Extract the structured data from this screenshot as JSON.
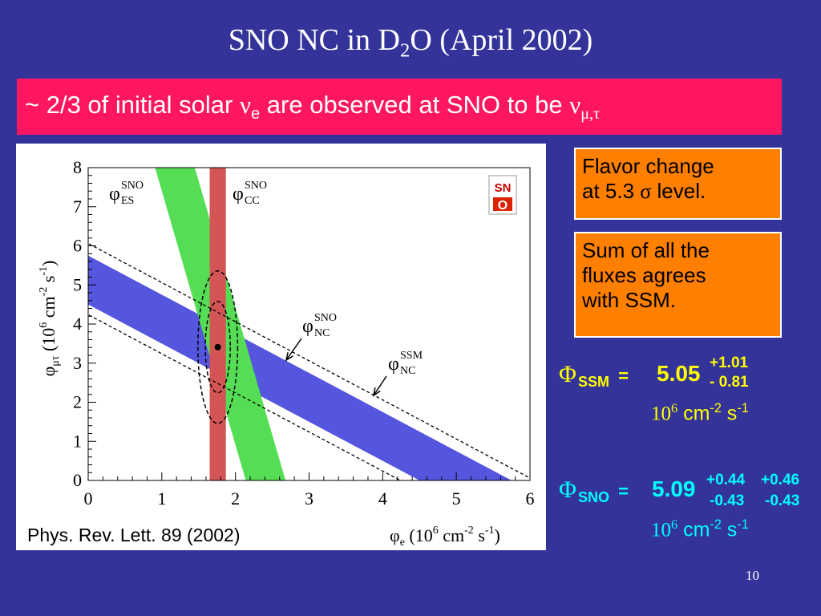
{
  "slide": {
    "title_prefix": "SNO NC in D",
    "title_sub": "2",
    "title_suffix": "O (April 2002)",
    "banner_prefix": "~ 2/3 of initial solar ",
    "banner_nu1": "ν",
    "banner_nu1_sub": "e",
    "banner_middle": " are observed at SNO to be ",
    "banner_nu2": "ν",
    "banner_nu2_sub": "μ,τ",
    "page_number": "10"
  },
  "boxes": {
    "flavor_line1": "Flavor change",
    "flavor_line2_prefix": "at 5.3 ",
    "flavor_sigma": "σ",
    "flavor_line2_suffix": " level.",
    "sum_line1": "Sum of all the",
    "sum_line2": "fluxes agrees",
    "sum_line3": "with SSM."
  },
  "fluxes": {
    "ssm": {
      "phi": "Φ",
      "label": "SSM",
      "equals": " = ",
      "value": "5.05",
      "plus": "+1.01",
      "minus": "- 0.81",
      "units_base": "10",
      "units_exp": "6",
      "units_cm": " cm",
      "units_cm_exp": "-2",
      "units_s": " s",
      "units_s_exp": "-1"
    },
    "sno": {
      "phi": "Φ",
      "label": "SNO",
      "equals": " = ",
      "value": "5.09",
      "plus1": "+0.44",
      "minus1": "-0.43",
      "plus2": "+0.46",
      "minus2": "-0.43",
      "units_base": "10",
      "units_exp": "6",
      "units_cm": " cm",
      "units_cm_exp": "-2",
      "units_s": " s",
      "units_s_exp": "-1"
    }
  },
  "colors": {
    "background": "#33339a",
    "banner": "#ff1660",
    "box": "#ff7f00",
    "ssm_text": "#ffff00",
    "sno_text": "#00ffff",
    "nc_band": "#5555dd",
    "es_band": "#55dd55",
    "cc_band": "#d35555"
  },
  "chart_data": {
    "type": "band-plot",
    "xlim": [
      0,
      6
    ],
    "ylim": [
      0,
      8
    ],
    "x_ticks": [
      "0",
      "1",
      "2",
      "3",
      "4",
      "5",
      "6"
    ],
    "y_ticks": [
      "0",
      "1",
      "2",
      "3",
      "4",
      "5",
      "6",
      "7",
      "8"
    ],
    "xlabel": {
      "phi": "φ",
      "sub": "e",
      "paren": " (10",
      "exp1": "6",
      "cm": " cm",
      "exp2": "-2",
      "s": " s",
      "exp3": "-1",
      "close": ")"
    },
    "ylabel": {
      "phi": "φ",
      "sub": "μτ",
      "paren": " (10",
      "exp1": "6",
      "cm": " cm",
      "exp2": "-2",
      "s": " s",
      "exp3": "-1",
      "close": ")"
    },
    "citation": "Phys. Rev. Lett. 89 (2002)",
    "bands": {
      "nc": {
        "sum_low": 4.5,
        "sum_high": 5.75
      },
      "es": {
        "a": 0.154,
        "low": 2.14,
        "high": 2.68
      },
      "cc": {
        "low": 1.65,
        "high": 1.87
      },
      "ssm": {
        "sum_low": 4.24,
        "sum_high": 6.06
      }
    },
    "best_fit": {
      "x": 1.76,
      "y": 3.41
    },
    "contours": [
      {
        "cx": 1.76,
        "cy": 3.41,
        "rx": 0.17,
        "ry": 1.17
      },
      {
        "cx": 1.76,
        "cy": 3.41,
        "rx": 0.27,
        "ry": 1.95
      }
    ],
    "labels": {
      "es": {
        "phi": "φ",
        "sup": "SNO",
        "sub": "ES"
      },
      "cc": {
        "phi": "φ",
        "sup": "SNO",
        "sub": "CC"
      },
      "nc": {
        "phi": "φ",
        "sup": "SNO",
        "sub": "NC"
      },
      "ssm": {
        "phi": "φ",
        "sup": "SSM",
        "sub": "NC"
      }
    },
    "logo": {
      "top": "SN",
      "bottom": "O"
    }
  }
}
